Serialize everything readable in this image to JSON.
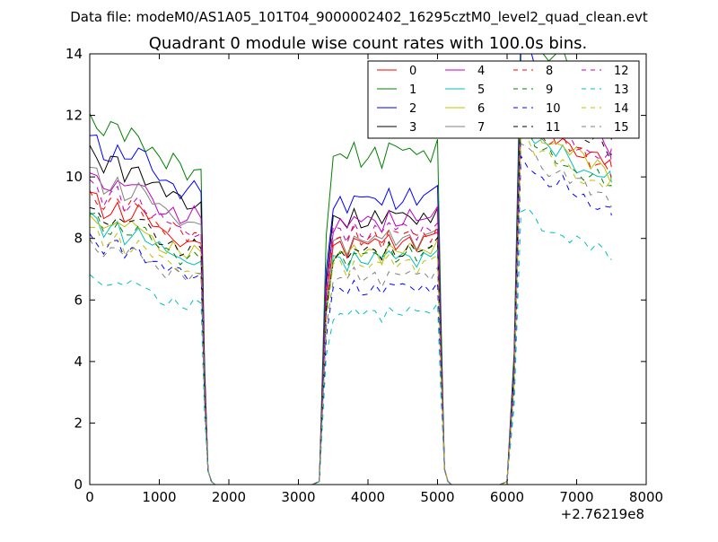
{
  "figure": {
    "suptitle": "Data file: modeM0/AS1A05_101T04_9000002402_16295cztM0_level2_quad_clean.evt"
  },
  "chart_data": {
    "type": "line",
    "title": "Quadrant 0 module wise count rates with 100.0s bins.",
    "xlabel": "",
    "ylabel": "",
    "xlim": [
      0,
      8000
    ],
    "ylim": [
      0,
      14
    ],
    "x_offset_label": "+2.76219e8",
    "x_ticks": [
      0,
      1000,
      2000,
      3000,
      4000,
      5000,
      6000,
      7000,
      8000
    ],
    "y_ticks": [
      0,
      2,
      4,
      6,
      8,
      10,
      12,
      14
    ],
    "grid": false,
    "legend": {
      "placement": "top-right",
      "columns": 4
    },
    "base_x": [
      0,
      100,
      200,
      300,
      400,
      500,
      600,
      700,
      800,
      900,
      1000,
      1100,
      1200,
      1300,
      1400,
      1500,
      1600,
      1650,
      1700,
      1750,
      1800,
      1900,
      2000,
      2100,
      2200,
      2300,
      2400,
      2500,
      2600,
      2700,
      2800,
      2900,
      3000,
      3100,
      3200,
      3300,
      3400,
      3500,
      3600,
      3700,
      3800,
      3900,
      4000,
      4100,
      4200,
      4300,
      4400,
      4500,
      4600,
      4700,
      4800,
      4900,
      5000,
      5050,
      5100,
      5150,
      5200,
      5300,
      5400,
      5500,
      5600,
      5700,
      5800,
      5900,
      6000,
      6100,
      6200,
      6300,
      6400,
      6500,
      6600,
      6700,
      6800,
      6900,
      7000,
      7100,
      7200,
      7300,
      7400,
      7480,
      7500
    ],
    "profiles": {
      "seg1": [
        1.0,
        0.98,
        0.93,
        0.95,
        0.97,
        0.92,
        0.94,
        0.95,
        0.92,
        0.9,
        0.88,
        0.86,
        0.87,
        0.84,
        0.83,
        0.85,
        0.84
      ],
      "seg2": [
        0.98,
        1.0,
        0.96,
        1.02,
        0.98,
        0.99,
        1.01,
        0.97,
        1.03,
        0.99,
        1.0,
        1.02,
        0.98,
        1.01,
        1.0,
        1.04
      ],
      "seg3": [
        1.13,
        1.12,
        1.08,
        1.06,
        1.05,
        1.03,
        1.04,
        1.01,
        1.0,
        0.99,
        0.97,
        0.98,
        0.96,
        0.95,
        0.94
      ]
    },
    "series": [
      {
        "name": "0",
        "color": "#ff0000",
        "style": "solid",
        "levels": [
          9.4,
          7.9,
          10.9
        ]
      },
      {
        "name": "1",
        "color": "#008000",
        "style": "solid",
        "levels": [
          12.1,
          10.8,
          13.4
        ]
      },
      {
        "name": "2",
        "color": "#0000ff",
        "style": "solid",
        "levels": [
          11.4,
          9.3,
          12.6
        ]
      },
      {
        "name": "3",
        "color": "#000000",
        "style": "solid",
        "levels": [
          10.9,
          8.7,
          12.0
        ]
      },
      {
        "name": "4",
        "color": "#bf00bf",
        "style": "solid",
        "levels": [
          10.3,
          8.6,
          11.6
        ]
      },
      {
        "name": "5",
        "color": "#00bfbf",
        "style": "solid",
        "levels": [
          8.7,
          7.4,
          10.4
        ]
      },
      {
        "name": "6",
        "color": "#bfbf00",
        "style": "solid",
        "levels": [
          8.9,
          7.6,
          10.7
        ]
      },
      {
        "name": "7",
        "color": "#808080",
        "style": "solid",
        "levels": [
          10.2,
          8.0,
          11.9
        ]
      },
      {
        "name": "8",
        "color": "#ff0000",
        "style": "dashed",
        "levels": [
          9.6,
          8.1,
          10.8
        ]
      },
      {
        "name": "9",
        "color": "#008000",
        "style": "dashed",
        "levels": [
          8.8,
          7.5,
          10.2
        ]
      },
      {
        "name": "10",
        "color": "#0000ff",
        "style": "dashed",
        "levels": [
          8.1,
          6.4,
          9.4
        ]
      },
      {
        "name": "11",
        "color": "#000000",
        "style": "dashed",
        "levels": [
          9.1,
          7.6,
          11.4
        ]
      },
      {
        "name": "12",
        "color": "#bf00bf",
        "style": "dashed",
        "levels": [
          9.8,
          8.3,
          11.1
        ]
      },
      {
        "name": "13",
        "color": "#00bfbf",
        "style": "dashed",
        "levels": [
          6.9,
          5.6,
          7.9
        ]
      },
      {
        "name": "14",
        "color": "#bfbf00",
        "style": "dashed",
        "levels": [
          8.3,
          7.2,
          10.1
        ]
      },
      {
        "name": "15",
        "color": "#808080",
        "style": "dashed",
        "levels": [
          8.0,
          6.8,
          9.8
        ]
      }
    ]
  }
}
